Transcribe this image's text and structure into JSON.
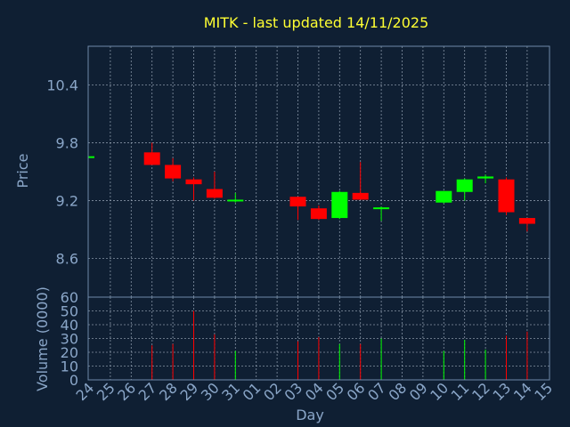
{
  "chart_data": [
    {
      "type": "candlestick",
      "title": "MITK - last updated 14/11/2025",
      "xlabel": "",
      "ylabel": "Price",
      "ylim": [
        8.2,
        10.8
      ],
      "yticks": [
        8.6,
        9.2,
        9.8,
        10.4
      ],
      "grid": true,
      "colors": {
        "up": "#00ff00",
        "down": "#ff0000",
        "background": "#0f1f33",
        "title": "#ffff33",
        "axis_text": "#8aa6c8"
      },
      "candles": [
        {
          "day": "24",
          "open": 9.66,
          "high": 9.66,
          "low": 9.66,
          "close": 9.66
        },
        {
          "day": "27",
          "open": 9.7,
          "high": 9.8,
          "low": 9.57,
          "close": 9.57
        },
        {
          "day": "28",
          "open": 9.57,
          "high": 9.64,
          "low": 9.4,
          "close": 9.43
        },
        {
          "day": "29",
          "open": 9.42,
          "high": 9.44,
          "low": 9.2,
          "close": 9.37
        },
        {
          "day": "30",
          "open": 9.32,
          "high": 9.5,
          "low": 9.22,
          "close": 9.23
        },
        {
          "day": "31",
          "open": 9.2,
          "high": 9.28,
          "low": 9.18,
          "close": 9.21
        },
        {
          "day": "03",
          "open": 9.24,
          "high": 9.24,
          "low": 9.0,
          "close": 9.14
        },
        {
          "day": "04",
          "open": 9.12,
          "high": 9.15,
          "low": 9.0,
          "close": 9.01
        },
        {
          "day": "05",
          "open": 9.02,
          "high": 9.3,
          "low": 9.01,
          "close": 9.29
        },
        {
          "day": "06",
          "open": 9.28,
          "high": 9.6,
          "low": 9.22,
          "close": 9.21
        },
        {
          "day": "07",
          "open": 9.12,
          "high": 9.14,
          "low": 8.99,
          "close": 9.13
        },
        {
          "day": "10",
          "open": 9.18,
          "high": 9.3,
          "low": 9.17,
          "close": 9.3
        },
        {
          "day": "11",
          "open": 9.29,
          "high": 9.43,
          "low": 9.2,
          "close": 9.42
        },
        {
          "day": "12",
          "open": 9.43,
          "high": 9.47,
          "low": 9.38,
          "close": 9.45
        },
        {
          "day": "13",
          "open": 9.42,
          "high": 9.44,
          "low": 9.05,
          "close": 9.08
        },
        {
          "day": "14",
          "open": 9.02,
          "high": 9.02,
          "low": 8.88,
          "close": 8.96
        }
      ]
    },
    {
      "type": "bar",
      "title": "",
      "xlabel": "Day",
      "ylabel": "Volume (0000)",
      "ylim": [
        0,
        60
      ],
      "yticks": [
        0,
        10,
        20,
        30,
        40,
        50,
        60
      ],
      "grid": true,
      "categories": [
        "24",
        "25",
        "26",
        "27",
        "28",
        "29",
        "30",
        "31",
        "01",
        "02",
        "03",
        "04",
        "05",
        "06",
        "07",
        "08",
        "09",
        "10",
        "11",
        "12",
        "13",
        "14",
        "15"
      ],
      "bars": [
        {
          "day": "27",
          "value": 25,
          "direction": "down"
        },
        {
          "day": "28",
          "value": 26,
          "direction": "down"
        },
        {
          "day": "29",
          "value": 50,
          "direction": "down"
        },
        {
          "day": "30",
          "value": 33,
          "direction": "down"
        },
        {
          "day": "31",
          "value": 21,
          "direction": "up"
        },
        {
          "day": "03",
          "value": 28,
          "direction": "down"
        },
        {
          "day": "04",
          "value": 31,
          "direction": "down"
        },
        {
          "day": "05",
          "value": 26,
          "direction": "up"
        },
        {
          "day": "06",
          "value": 26,
          "direction": "down"
        },
        {
          "day": "07",
          "value": 30,
          "direction": "up"
        },
        {
          "day": "10",
          "value": 21,
          "direction": "up"
        },
        {
          "day": "11",
          "value": 29,
          "direction": "up"
        },
        {
          "day": "12",
          "value": 22,
          "direction": "up"
        },
        {
          "day": "13",
          "value": 32,
          "direction": "down"
        },
        {
          "day": "14",
          "value": 35,
          "direction": "down"
        }
      ]
    }
  ]
}
